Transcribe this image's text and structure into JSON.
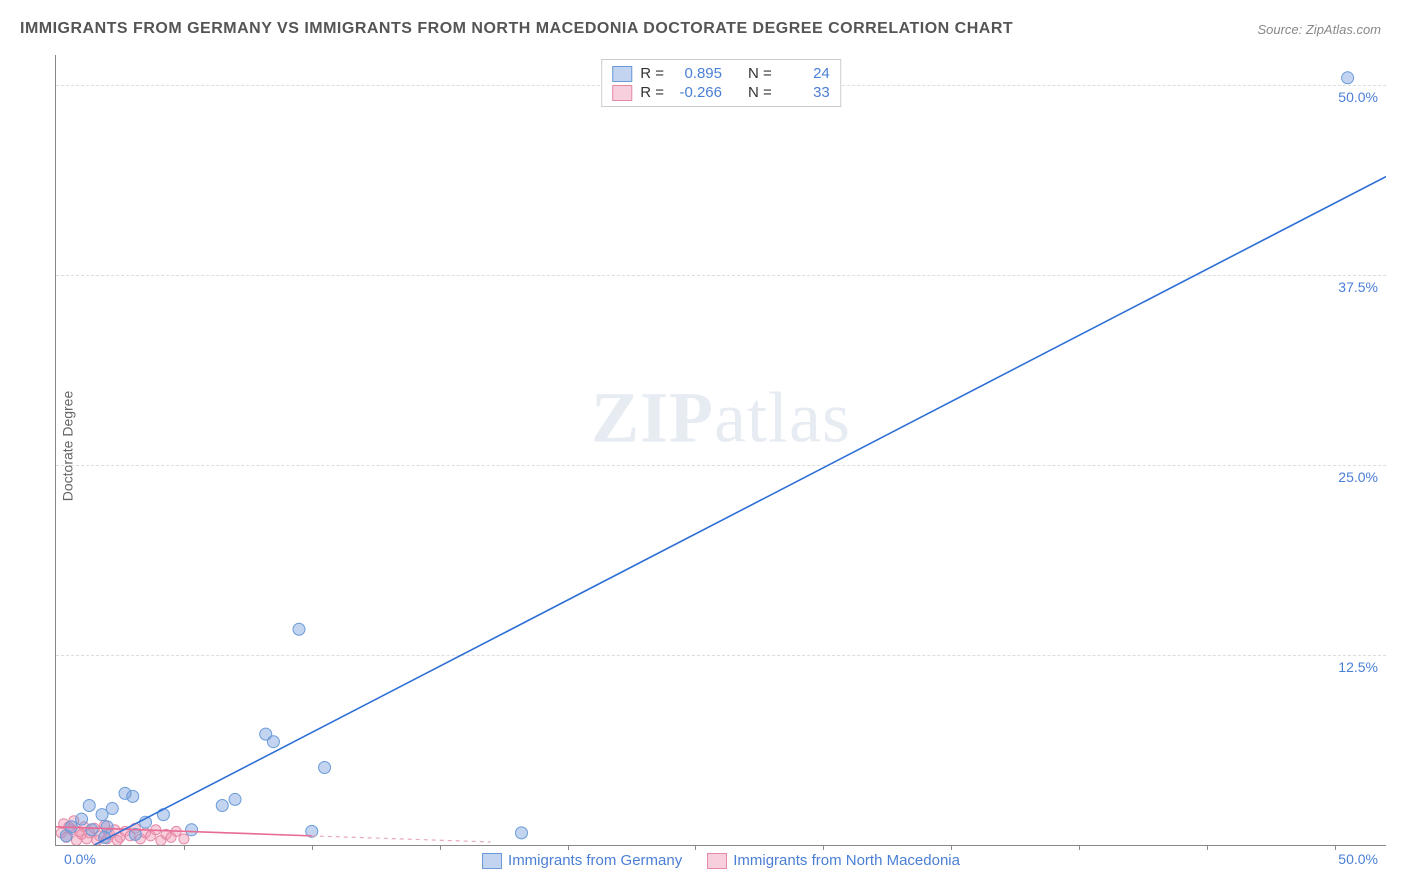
{
  "title": "IMMIGRANTS FROM GERMANY VS IMMIGRANTS FROM NORTH MACEDONIA DOCTORATE DEGREE CORRELATION CHART",
  "source": "Source: ZipAtlas.com",
  "ylabel": "Doctorate Degree",
  "watermark_zip": "ZIP",
  "watermark_atlas": "atlas",
  "chart": {
    "type": "scatter",
    "xlim": [
      0,
      52
    ],
    "ylim": [
      0,
      52
    ],
    "yticks": [
      {
        "v": 12.5,
        "label": "12.5%"
      },
      {
        "v": 25.0,
        "label": "25.0%"
      },
      {
        "v": 37.5,
        "label": "37.5%"
      },
      {
        "v": 50.0,
        "label": "50.0%"
      }
    ],
    "xtick_left": "0.0%",
    "xtick_right": "50.0%",
    "xtick_marks_every": 5,
    "background_color": "#ffffff",
    "grid_color": "#dddddd",
    "series": [
      {
        "id": "germany",
        "label": "Immigrants from Germany",
        "color_fill": "rgba(120,160,220,0.45)",
        "color_stroke": "#6a9bd8",
        "marker_size": 6,
        "R": "0.895",
        "N": "24",
        "trend": {
          "x1": 1.5,
          "y1": 0,
          "x2": 52,
          "y2": 44,
          "stroke": "#2e6fd6",
          "width": 1.6,
          "dash": "none"
        },
        "points": [
          [
            50.5,
            50.5
          ],
          [
            9.5,
            14.2
          ],
          [
            8.2,
            7.3
          ],
          [
            8.5,
            6.8
          ],
          [
            10.5,
            5.1
          ],
          [
            7.0,
            3.0
          ],
          [
            6.5,
            2.6
          ],
          [
            18.2,
            0.8
          ],
          [
            10.0,
            0.9
          ],
          [
            3.0,
            3.2
          ],
          [
            2.2,
            2.4
          ],
          [
            1.8,
            2.0
          ],
          [
            2.7,
            3.4
          ],
          [
            1.3,
            2.6
          ],
          [
            1.0,
            1.7
          ],
          [
            0.6,
            1.2
          ],
          [
            1.4,
            1.0
          ],
          [
            2.0,
            1.2
          ],
          [
            3.5,
            1.5
          ],
          [
            4.2,
            2.0
          ],
          [
            5.3,
            1.0
          ],
          [
            0.4,
            0.6
          ],
          [
            1.9,
            0.5
          ],
          [
            3.1,
            0.7
          ]
        ]
      },
      {
        "id": "macedonia",
        "label": "Immigrants from North Macedonia",
        "color_fill": "rgba(240,150,180,0.45)",
        "color_stroke": "#e58aa6",
        "marker_size": 5,
        "R": "-0.266",
        "N": "33",
        "trend": {
          "x1": 0,
          "y1": 1.2,
          "x2": 10,
          "y2": 0.6,
          "stroke": "#e86b94",
          "width": 1.6,
          "dash": "none"
        },
        "trend_ext": {
          "x1": 10,
          "y1": 0.6,
          "x2": 17,
          "y2": 0.2,
          "stroke": "#e8a8bc",
          "width": 1.2,
          "dash": "4,4"
        },
        "points": [
          [
            0.3,
            1.4
          ],
          [
            0.5,
            1.2
          ],
          [
            0.7,
            1.6
          ],
          [
            0.9,
            0.9
          ],
          [
            1.1,
            1.2
          ],
          [
            1.3,
            0.8
          ],
          [
            1.5,
            1.1
          ],
          [
            1.7,
            0.6
          ],
          [
            1.9,
            1.3
          ],
          [
            2.1,
            0.7
          ],
          [
            2.3,
            1.0
          ],
          [
            2.5,
            0.5
          ],
          [
            2.7,
            0.9
          ],
          [
            2.9,
            0.6
          ],
          [
            3.1,
            1.1
          ],
          [
            3.3,
            0.4
          ],
          [
            3.5,
            0.8
          ],
          [
            3.7,
            0.6
          ],
          [
            3.9,
            1.0
          ],
          [
            4.1,
            0.3
          ],
          [
            4.3,
            0.7
          ],
          [
            4.5,
            0.5
          ],
          [
            4.7,
            0.9
          ],
          [
            5.0,
            0.4
          ],
          [
            0.2,
            0.8
          ],
          [
            0.4,
            0.5
          ],
          [
            0.6,
            1.0
          ],
          [
            0.8,
            0.3
          ],
          [
            1.0,
            0.7
          ],
          [
            1.2,
            0.4
          ],
          [
            1.6,
            0.3
          ],
          [
            2.0,
            0.4
          ],
          [
            2.4,
            0.3
          ]
        ]
      }
    ],
    "stats_legend": {
      "R_label": "R =",
      "N_label": "N ="
    }
  }
}
